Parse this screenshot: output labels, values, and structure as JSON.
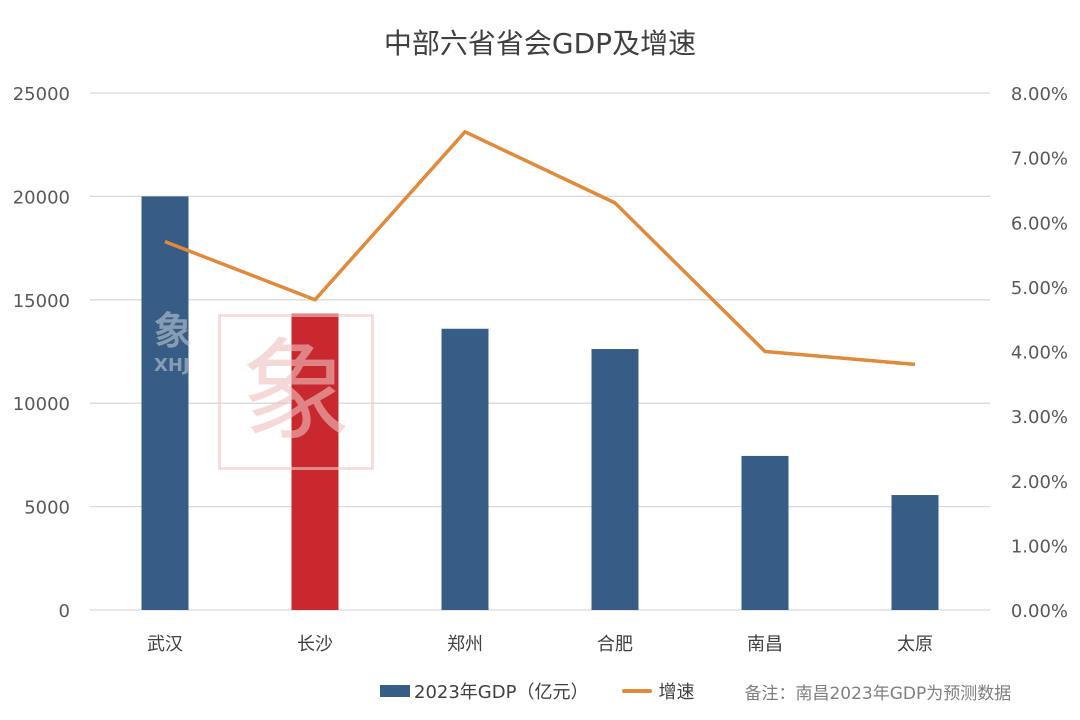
{
  "chart_data": {
    "type": "bar+line",
    "title": "中部六省省会GDP及增速",
    "categories": [
      "武汉",
      "长沙",
      "郑州",
      "合肥",
      "南昌",
      "太原"
    ],
    "series": [
      {
        "name": "2023年GDP（亿元）",
        "type": "bar",
        "axis": "left",
        "values": [
          20000,
          14330,
          13600,
          12620,
          7450,
          5560
        ],
        "colors": [
          "#375d86",
          "#c8282e",
          "#375d86",
          "#375d86",
          "#375d86",
          "#375d86"
        ]
      },
      {
        "name": "增速",
        "type": "line",
        "axis": "right",
        "values": [
          5.7,
          4.8,
          7.4,
          6.3,
          4.0,
          3.8
        ],
        "unit": "%",
        "color": "#e08a3a"
      }
    ],
    "y_left": {
      "lim": [
        0,
        25000
      ],
      "ticks": [
        "0",
        "5000",
        "10000",
        "15000",
        "20000",
        "25000"
      ]
    },
    "y_right": {
      "lim": [
        0,
        8
      ],
      "ticks": [
        "0.00%",
        "1.00%",
        "2.00%",
        "3.00%",
        "4.00%",
        "5.00%",
        "6.00%",
        "7.00%",
        "8.00%"
      ]
    },
    "grid": true,
    "legend_position": "bottom",
    "note": "备注：南昌2023年GDP为预测数据",
    "watermark": "象限瑞 XHJ"
  }
}
